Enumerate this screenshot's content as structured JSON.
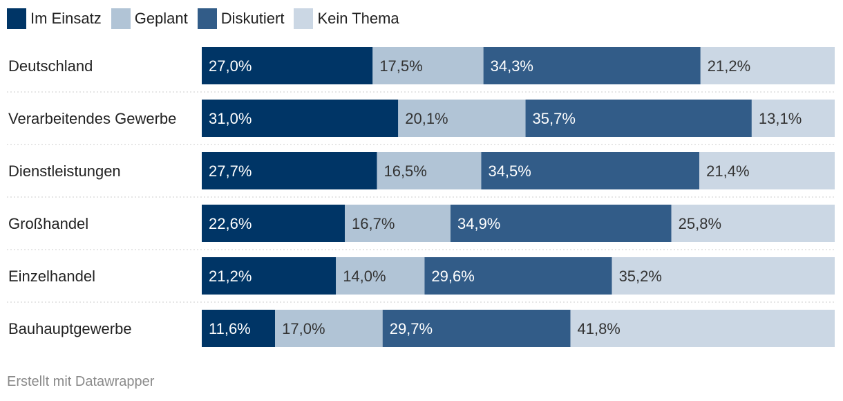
{
  "chart_data": {
    "type": "bar",
    "stacked": true,
    "orientation": "horizontal",
    "normalized_percent": true,
    "categories": [
      "Deutschland",
      "Verarbeitendes Gewerbe",
      "Dienstleistungen",
      "Großhandel",
      "Einzelhandel",
      "Bauhauptgewerbe"
    ],
    "series": [
      {
        "name": "Im Einsatz",
        "color": "#003566",
        "text_color": "#ffffff",
        "values": [
          27.0,
          31.0,
          27.7,
          22.6,
          21.2,
          11.6
        ],
        "labels": [
          "27,0%",
          "31,0%",
          "27,7%",
          "22,6%",
          "21,2%",
          "11,6%"
        ]
      },
      {
        "name": "Geplant",
        "color": "#b1c4d6",
        "text_color": "#333333",
        "values": [
          17.5,
          20.1,
          16.5,
          16.7,
          14.0,
          17.0
        ],
        "labels": [
          "17,5%",
          "20,1%",
          "16,5%",
          "16,7%",
          "14,0%",
          "17,0%"
        ]
      },
      {
        "name": "Diskutiert",
        "color": "#325c88",
        "text_color": "#ffffff",
        "values": [
          34.3,
          35.7,
          34.5,
          34.9,
          29.6,
          29.7
        ],
        "labels": [
          "34,3%",
          "35,7%",
          "34,5%",
          "34,9%",
          "29,6%",
          "29,7%"
        ]
      },
      {
        "name": "Kein Thema",
        "color": "#cbd7e4",
        "text_color": "#333333",
        "values": [
          21.2,
          13.1,
          21.4,
          25.8,
          35.2,
          41.8
        ],
        "labels": [
          "21,2%",
          "13,1%",
          "21,4%",
          "25,8%",
          "35,2%",
          "41,8%"
        ]
      }
    ],
    "xlim": [
      0,
      100
    ],
    "legend": "top-left",
    "grid": false
  },
  "footer": {
    "credit": "Erstellt mit Datawrapper"
  }
}
